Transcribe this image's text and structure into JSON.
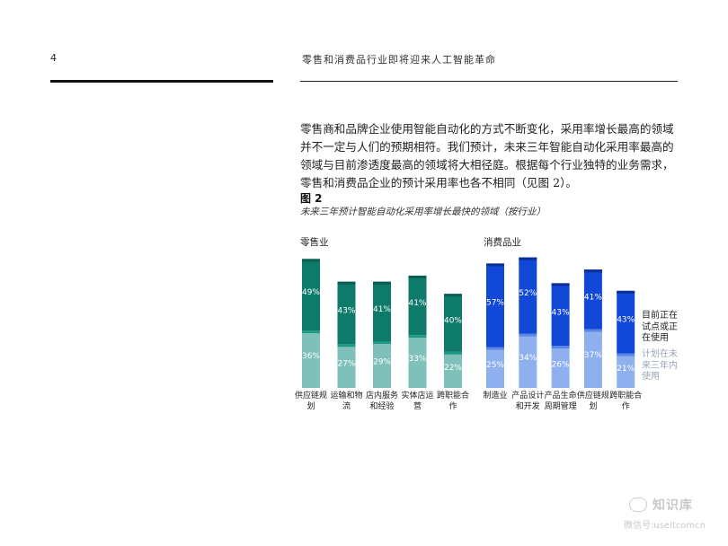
{
  "header": {
    "page_number": "4",
    "title": "零售和消费品行业即将迎来人工智能革命"
  },
  "body_text": "零售商和品牌企业使用智能自动化的方式不断变化，采用率增长最高的领域并不一定与人们的预期相符。我们预计，未来三年智能自动化采用率最高的领域与目前渗透度最高的领域将大相径庭。根据每个行业独特的业务需求，零售和消费品企业的预计采用率也各不相同（见图 2）。",
  "figure": {
    "label": "图 2",
    "caption": "未来三年预计智能自动化采用率增长最快的领域（按行业）"
  },
  "legend": {
    "current": "目前正在试点或正在使用",
    "planned": "计划在未来三年内使用"
  },
  "colors": {
    "retail_current": "#0d7a6a",
    "retail_current_dark": "#0a5e52",
    "retail_planned": "#7fc1ba",
    "retail_band": "#1f9a86",
    "consumer_current": "#1248d8",
    "consumer_current_dark": "#0c2f96",
    "consumer_planned": "#8fb0ee",
    "consumer_band": "#5a86e4"
  },
  "chart_data": [
    {
      "type": "bar",
      "stacked": true,
      "title": "零售业",
      "categories": [
        "供应链规划",
        "运输和物流",
        "店内服务和经验",
        "实体店运营",
        "跨职能合作"
      ],
      "series": [
        {
          "name": "目前正在试点或正在使用",
          "values": [
            49,
            43,
            41,
            41,
            40
          ]
        },
        {
          "name": "计划在未来三年内使用",
          "values": [
            36,
            27,
            29,
            33,
            22
          ]
        }
      ],
      "value_suffix": "%"
    },
    {
      "type": "bar",
      "stacked": true,
      "title": "消费品业",
      "categories": [
        "制造业",
        "产品设计和开发",
        "产品生命周期管理",
        "供应链规划",
        "跨职能合作"
      ],
      "series": [
        {
          "name": "目前正在试点或正在使用",
          "values": [
            57,
            52,
            43,
            41,
            43
          ]
        },
        {
          "name": "计划在未来三年内使用",
          "values": [
            25,
            34,
            26,
            37,
            21
          ]
        }
      ],
      "value_suffix": "%"
    }
  ],
  "watermark": {
    "logo": "知识库",
    "sub": "微信号:useitcomcn"
  }
}
